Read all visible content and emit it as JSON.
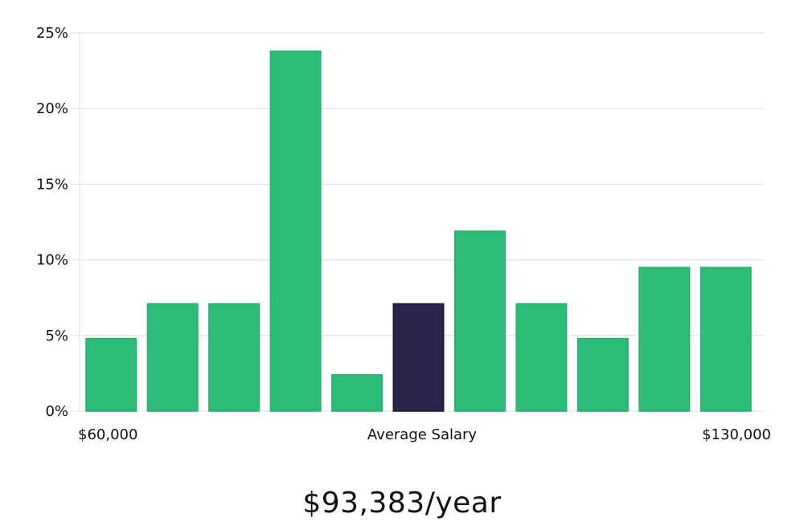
{
  "chart_data": {
    "type": "bar",
    "ylim": [
      0,
      25
    ],
    "y_ticks": [
      0,
      5,
      10,
      15,
      20,
      25
    ],
    "y_tick_labels": [
      "0%",
      "5%",
      "10%",
      "15%",
      "20%",
      "25%"
    ],
    "grid": true,
    "values": [
      4.8,
      7.1,
      7.1,
      23.8,
      2.4,
      7.1,
      11.9,
      7.1,
      4.8,
      9.5,
      9.5
    ],
    "highlight_index": 5,
    "x_labels": {
      "left": "$60,000",
      "center": "Average Salary",
      "right": "$130,000"
    },
    "colors": {
      "bar": "#2bbd77",
      "highlight": "#28244a",
      "grid": "#dddddd"
    }
  },
  "salary_text": "$93,383/year"
}
